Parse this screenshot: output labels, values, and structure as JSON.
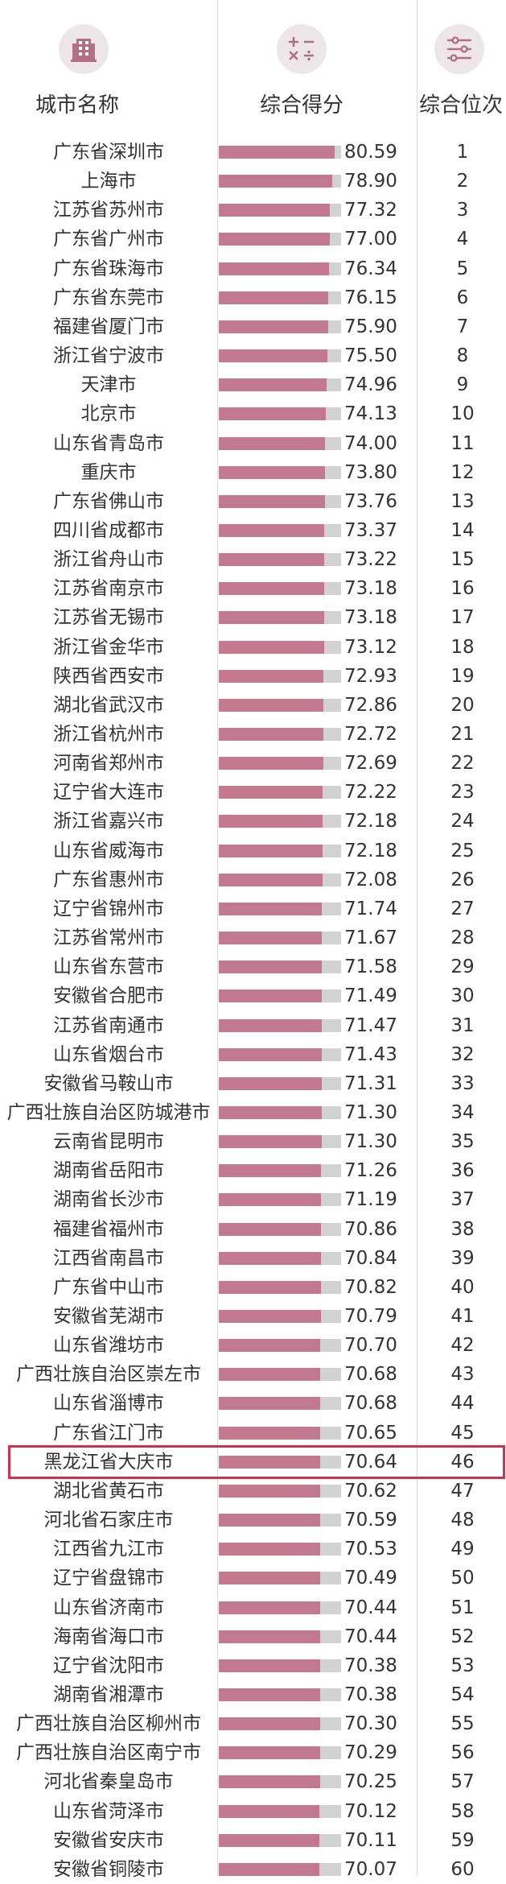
{
  "header": {
    "col_city": "城市名称",
    "col_score": "综合得分",
    "col_rank": "综合位次",
    "icons": [
      "building-icon",
      "calculator-icon",
      "sliders-icon"
    ]
  },
  "colors": {
    "bar": "#c27990",
    "track": "#d2d2d2",
    "highlight": "#d1314a"
  },
  "highlight_rank": 46,
  "chart_data": {
    "type": "bar",
    "orientation": "horizontal",
    "categories": [
      "广东省深圳市",
      "上海市",
      "江苏省苏州市",
      "广东省广州市",
      "广东省珠海市",
      "广东省东莞市",
      "福建省厦门市",
      "浙江省宁波市",
      "天津市",
      "北京市",
      "山东省青岛市",
      "重庆市",
      "广东省佛山市",
      "四川省成都市",
      "浙江省舟山市",
      "江苏省南京市",
      "江苏省无锡市",
      "浙江省金华市",
      "陕西省西安市",
      "湖北省武汉市",
      "浙江省杭州市",
      "河南省郑州市",
      "辽宁省大连市",
      "浙江省嘉兴市",
      "山东省威海市",
      "广东省惠州市",
      "辽宁省锦州市",
      "江苏省常州市",
      "山东省东营市",
      "安徽省合肥市",
      "江苏省南通市",
      "山东省烟台市",
      "安徽省马鞍山市",
      "广西壮族自治区防城港市",
      "云南省昆明市",
      "湖南省岳阳市",
      "湖南省长沙市",
      "福建省福州市",
      "江西省南昌市",
      "广东省中山市",
      "安徽省芜湖市",
      "山东省潍坊市",
      "广西壮族自治区崇左市",
      "山东省淄博市",
      "广东省江门市",
      "黑龙江省大庆市",
      "湖北省黄石市",
      "河北省石家庄市",
      "江西省九江市",
      "辽宁省盘锦市",
      "山东省济南市",
      "海南省海口市",
      "辽宁省沈阳市",
      "湖南省湘潭市",
      "广西壮族自治区柳州市",
      "广西壮族自治区南宁市",
      "河北省秦皇岛市",
      "山东省菏泽市",
      "安徽省安庆市",
      "安徽省铜陵市"
    ],
    "values": [
      80.59,
      78.9,
      77.32,
      77.0,
      76.34,
      76.15,
      75.9,
      75.5,
      74.96,
      74.13,
      74.0,
      73.8,
      73.76,
      73.37,
      73.22,
      73.18,
      73.18,
      73.12,
      72.93,
      72.86,
      72.72,
      72.69,
      72.22,
      72.18,
      72.18,
      72.08,
      71.74,
      71.67,
      71.58,
      71.49,
      71.47,
      71.43,
      71.31,
      71.3,
      71.3,
      71.26,
      71.19,
      70.86,
      70.84,
      70.82,
      70.79,
      70.7,
      70.68,
      70.68,
      70.65,
      70.64,
      70.62,
      70.59,
      70.53,
      70.49,
      70.44,
      70.44,
      70.38,
      70.38,
      70.3,
      70.29,
      70.25,
      70.12,
      70.11,
      70.07
    ],
    "value_labels": [
      "80.59",
      "78.90",
      "77.32",
      "77.00",
      "76.34",
      "76.15",
      "75.90",
      "75.50",
      "74.96",
      "74.13",
      "74.00",
      "73.80",
      "73.76",
      "73.37",
      "73.22",
      "73.18",
      "73.18",
      "73.12",
      "72.93",
      "72.86",
      "72.72",
      "72.69",
      "72.22",
      "72.18",
      "72.18",
      "72.08",
      "71.74",
      "71.67",
      "71.58",
      "71.49",
      "71.47",
      "71.43",
      "71.31",
      "71.30",
      "71.30",
      "71.26",
      "71.19",
      "70.86",
      "70.84",
      "70.82",
      "70.79",
      "70.70",
      "70.68",
      "70.68",
      "70.65",
      "70.64",
      "70.62",
      "70.59",
      "70.53",
      "70.49",
      "70.44",
      "70.44",
      "70.38",
      "70.38",
      "70.30",
      "70.29",
      "70.25",
      "70.12",
      "70.11",
      "70.07"
    ],
    "ranks": [
      1,
      2,
      3,
      4,
      5,
      6,
      7,
      8,
      9,
      10,
      11,
      12,
      13,
      14,
      15,
      16,
      17,
      18,
      19,
      20,
      21,
      22,
      23,
      24,
      25,
      26,
      27,
      28,
      29,
      30,
      31,
      32,
      33,
      34,
      35,
      36,
      37,
      38,
      39,
      40,
      41,
      42,
      43,
      44,
      45,
      46,
      47,
      48,
      49,
      50,
      51,
      52,
      53,
      54,
      55,
      56,
      57,
      58,
      59,
      60
    ],
    "title": "",
    "xlabel": "",
    "ylabel": "",
    "xlim": [
      0,
      85
    ],
    "grid": false,
    "legend": "none"
  }
}
